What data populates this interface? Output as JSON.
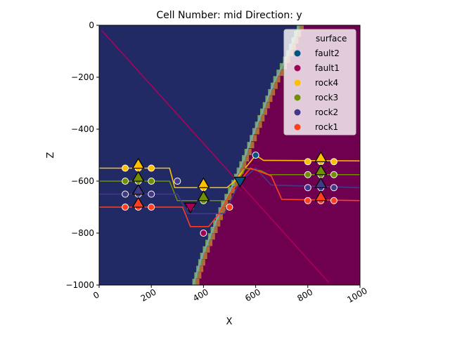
{
  "chart_data": {
    "type": "scatter",
    "title": "Cell Number: mid Direction: y",
    "xlabel": "X",
    "ylabel": "Z",
    "xlim": [
      0,
      1000
    ],
    "ylim": [
      -1000,
      0
    ],
    "xticks": [
      0,
      200,
      400,
      600,
      800,
      1000
    ],
    "xtick_labels": [
      "0",
      "200",
      "400",
      "600",
      "800",
      "1000"
    ],
    "yticks": [
      0,
      -200,
      -400,
      -600,
      -800,
      -1000
    ],
    "ytick_labels": [
      "0",
      "−200",
      "−400",
      "−600",
      "−800",
      "−1000"
    ],
    "grid": false,
    "legend": {
      "title": "surface",
      "placement": "top-right",
      "entries": [
        {
          "name": "fault2",
          "color": "#015482"
        },
        {
          "name": "fault1",
          "color": "#9f0052"
        },
        {
          "name": "rock4",
          "color": "#ffbe00"
        },
        {
          "name": "rock3",
          "color": "#728f02"
        },
        {
          "name": "rock2",
          "color": "#443988"
        },
        {
          "name": "rock1",
          "color": "#ff3f20"
        }
      ]
    },
    "regions": [
      {
        "name": "hanging-wall",
        "color": "#222a66"
      },
      {
        "name": "footwall",
        "color": "#6f0050"
      }
    ],
    "fault_trace": [
      [
        360,
        -1000
      ],
      [
        390,
        -900
      ],
      [
        430,
        -800
      ],
      [
        470,
        -700
      ],
      [
        510,
        -620
      ],
      [
        560,
        -500
      ],
      [
        590,
        -420
      ],
      [
        630,
        -320
      ],
      [
        670,
        -220
      ],
      [
        720,
        -120
      ],
      [
        760,
        -20
      ],
      [
        765,
        0
      ]
    ],
    "fault1_trace": [
      [
        10,
        -20
      ],
      [
        880,
        -990
      ]
    ],
    "contacts": [
      {
        "name": "rock4",
        "color": "#ffbe00",
        "points": [
          [
            0,
            -550
          ],
          [
            270,
            -550
          ],
          [
            290,
            -625
          ],
          [
            490,
            -625
          ],
          [
            520,
            -600
          ],
          [
            600,
            -500
          ],
          [
            630,
            -520
          ],
          [
            1000,
            -522
          ]
        ]
      },
      {
        "name": "rock3",
        "color": "#728f02",
        "points": [
          [
            0,
            -600
          ],
          [
            270,
            -600
          ],
          [
            300,
            -675
          ],
          [
            490,
            -675
          ],
          [
            560,
            -550
          ],
          [
            620,
            -560
          ],
          [
            650,
            -575
          ],
          [
            1000,
            -575
          ]
        ]
      },
      {
        "name": "rock2",
        "color": "#443988",
        "points": [
          [
            0,
            -650
          ],
          [
            300,
            -650
          ],
          [
            340,
            -725
          ],
          [
            480,
            -725
          ],
          [
            540,
            -600
          ],
          [
            600,
            -550
          ],
          [
            660,
            -615
          ],
          [
            1000,
            -625
          ]
        ]
      },
      {
        "name": "rock1",
        "color": "#ff3f20",
        "points": [
          [
            0,
            -700
          ],
          [
            320,
            -700
          ],
          [
            350,
            -775
          ],
          [
            420,
            -775
          ],
          [
            460,
            -725
          ],
          [
            500,
            -650
          ],
          [
            580,
            -550
          ],
          [
            660,
            -580
          ],
          [
            700,
            -670
          ],
          [
            1000,
            -675
          ]
        ]
      }
    ],
    "series": [
      {
        "name": "rock4",
        "color": "#ffbe00",
        "x": [
          100,
          150,
          200,
          400,
          800,
          850,
          900
        ],
        "y": [
          -550,
          -550,
          -550,
          -625,
          -525,
          -525,
          -525
        ]
      },
      {
        "name": "rock3",
        "color": "#728f02",
        "x": [
          100,
          150,
          200,
          400,
          800,
          850,
          900
        ],
        "y": [
          -600,
          -600,
          -600,
          -675,
          -575,
          -575,
          -575
        ]
      },
      {
        "name": "rock2",
        "color": "#443988",
        "x": [
          100,
          150,
          200,
          300,
          800,
          850,
          900
        ],
        "y": [
          -650,
          -650,
          -650,
          -600,
          -625,
          -625,
          -625
        ]
      },
      {
        "name": "rock1",
        "color": "#ff3f20",
        "x": [
          100,
          150,
          200,
          350,
          500,
          800,
          850,
          900
        ],
        "y": [
          -700,
          -700,
          -700,
          -700,
          -700,
          -675,
          -675,
          -675
        ]
      },
      {
        "name": "fault1",
        "color": "#9f0052",
        "x": [
          400
        ],
        "y": [
          -800
        ]
      },
      {
        "name": "fault2",
        "color": "#015482",
        "x": [
          600
        ],
        "y": [
          -500
        ]
      }
    ],
    "orientations": [
      {
        "surface": "rock4",
        "color": "#ffbe00",
        "x": 150,
        "y": -535,
        "dir": "up"
      },
      {
        "surface": "rock3",
        "color": "#728f02",
        "x": 150,
        "y": -585,
        "dir": "up"
      },
      {
        "surface": "rock2",
        "color": "#443988",
        "x": 150,
        "y": -635,
        "dir": "up"
      },
      {
        "surface": "rock1",
        "color": "#ff3f20",
        "x": 150,
        "y": -685,
        "dir": "up"
      },
      {
        "surface": "rock4",
        "color": "#ffbe00",
        "x": 400,
        "y": -610,
        "dir": "up"
      },
      {
        "surface": "rock3",
        "color": "#728f02",
        "x": 400,
        "y": -660,
        "dir": "up"
      },
      {
        "surface": "rock4",
        "color": "#ffbe00",
        "x": 850,
        "y": -510,
        "dir": "up"
      },
      {
        "surface": "rock3",
        "color": "#728f02",
        "x": 850,
        "y": -560,
        "dir": "up"
      },
      {
        "surface": "rock2",
        "color": "#443988",
        "x": 850,
        "y": -610,
        "dir": "up"
      },
      {
        "surface": "rock1",
        "color": "#ff3f20",
        "x": 850,
        "y": -660,
        "dir": "up"
      },
      {
        "surface": "fault1",
        "color": "#9f0052",
        "x": 350,
        "y": -700,
        "dir": "down"
      },
      {
        "surface": "fault2",
        "color": "#015482",
        "x": 540,
        "y": -600,
        "dir": "down"
      }
    ]
  }
}
